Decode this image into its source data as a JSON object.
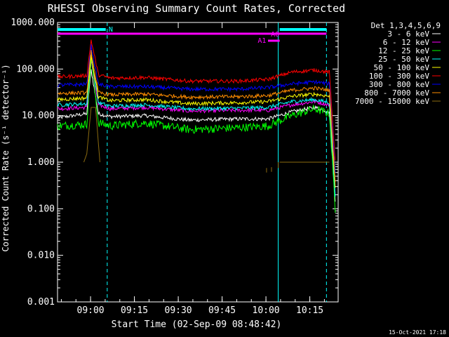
{
  "chart_data": {
    "type": "line",
    "title": "RHESSI Observing Summary Count Rates, Corrected",
    "xlabel": "Start Time (02-Sep-09 08:48:42)",
    "ylabel": "Corrected Count Rate (s⁻¹ detector⁻¹)",
    "y_scale": "log",
    "ylim": [
      0.001,
      1000
    ],
    "xlim_minutes": [
      0,
      96
    ],
    "x_ticks": [
      {
        "label": "09:00",
        "minutes": 11.3
      },
      {
        "label": "09:15",
        "minutes": 26.3
      },
      {
        "label": "09:30",
        "minutes": 41.3
      },
      {
        "label": "09:45",
        "minutes": 56.3
      },
      {
        "label": "10:00",
        "minutes": 71.3
      },
      {
        "label": "10:15",
        "minutes": 86.3
      }
    ],
    "y_ticks": [
      "0.001",
      "0.010",
      "0.100",
      "1.000",
      "10.000",
      "100.000",
      "1000.000"
    ],
    "legend_title": "Det 1,3,4,5,6,9",
    "legend_position": "right",
    "series": [
      {
        "name": "3 - 6 keV",
        "color": "#ffffff",
        "knots": [
          [
            0,
            9
          ],
          [
            10,
            11
          ],
          [
            11.5,
            95
          ],
          [
            14,
            11
          ],
          [
            18,
            9.5
          ],
          [
            30,
            10
          ],
          [
            45,
            8
          ],
          [
            62,
            8.5
          ],
          [
            72,
            8.5
          ],
          [
            80,
            12
          ],
          [
            88,
            15
          ],
          [
            93,
            12
          ],
          [
            95,
            0.15
          ]
        ]
      },
      {
        "name": "6 - 12 keV",
        "color": "#ff00ff",
        "knots": [
          [
            0,
            14
          ],
          [
            10,
            15
          ],
          [
            11.5,
            150
          ],
          [
            14,
            17
          ],
          [
            18,
            14
          ],
          [
            30,
            15
          ],
          [
            45,
            12.5
          ],
          [
            62,
            13
          ],
          [
            72,
            13
          ],
          [
            80,
            17
          ],
          [
            88,
            20
          ],
          [
            93,
            17
          ],
          [
            95,
            0.2
          ]
        ]
      },
      {
        "name": "12 - 25 keV",
        "color": "#00ff00",
        "knots": [
          [
            0,
            6
          ],
          [
            10,
            6.5
          ],
          [
            11.5,
            180
          ],
          [
            14,
            7
          ],
          [
            18,
            6
          ],
          [
            30,
            7
          ],
          [
            45,
            5
          ],
          [
            62,
            5.5
          ],
          [
            72,
            6
          ],
          [
            80,
            10
          ],
          [
            88,
            14
          ],
          [
            93,
            11
          ],
          [
            95,
            0.1
          ]
        ]
      },
      {
        "name": "25 - 50 keV",
        "color": "#00ffff",
        "knots": [
          [
            0,
            17
          ],
          [
            10,
            18
          ],
          [
            11.5,
            200
          ],
          [
            14,
            19
          ],
          [
            18,
            16
          ],
          [
            30,
            17
          ],
          [
            45,
            14
          ],
          [
            62,
            14.5
          ],
          [
            72,
            15
          ],
          [
            80,
            20
          ],
          [
            88,
            22
          ],
          [
            93,
            19
          ],
          [
            95,
            0.2
          ]
        ]
      },
      {
        "name": "50 - 100 keV",
        "color": "#ffff00",
        "knots": [
          [
            0,
            22
          ],
          [
            10,
            24
          ],
          [
            11.5,
            190
          ],
          [
            14,
            25
          ],
          [
            18,
            21
          ],
          [
            30,
            22
          ],
          [
            45,
            18
          ],
          [
            62,
            19
          ],
          [
            72,
            20
          ],
          [
            80,
            26
          ],
          [
            88,
            29
          ],
          [
            93,
            26
          ],
          [
            95,
            0.3
          ]
        ]
      },
      {
        "name": "100 - 300 keV",
        "color": "#ff0000",
        "knots": [
          [
            0,
            68
          ],
          [
            10,
            72
          ],
          [
            11.5,
            420
          ],
          [
            14,
            75
          ],
          [
            18,
            64
          ],
          [
            30,
            66
          ],
          [
            45,
            55
          ],
          [
            62,
            55
          ],
          [
            72,
            60
          ],
          [
            80,
            86
          ],
          [
            88,
            95
          ],
          [
            93,
            85
          ],
          [
            95,
            1
          ]
        ]
      },
      {
        "name": "300 - 800 keV",
        "color": "#0000ff",
        "knots": [
          [
            0,
            45
          ],
          [
            10,
            47
          ],
          [
            11.5,
            310
          ],
          [
            14,
            47
          ],
          [
            18,
            42
          ],
          [
            30,
            42
          ],
          [
            45,
            37
          ],
          [
            62,
            37
          ],
          [
            72,
            40
          ],
          [
            80,
            48
          ],
          [
            88,
            53
          ],
          [
            93,
            48
          ],
          [
            95,
            0.6
          ]
        ]
      },
      {
        "name": "800 - 7000 keV",
        "color": "#ff8c00",
        "knots": [
          [
            0,
            30
          ],
          [
            10,
            31
          ],
          [
            11.5,
            240
          ],
          [
            14,
            31
          ],
          [
            18,
            28
          ],
          [
            30,
            29
          ],
          [
            45,
            25
          ],
          [
            62,
            25.5
          ],
          [
            72,
            27
          ],
          [
            80,
            35
          ],
          [
            88,
            39
          ],
          [
            93,
            35
          ],
          [
            95,
            0.4
          ]
        ]
      },
      {
        "name": "7000 - 15000 keV",
        "color": "#8b6b10",
        "knots": [
          [
            9,
            1
          ],
          [
            10,
            1.5
          ],
          [
            11.5,
            15
          ],
          [
            13,
            15
          ],
          [
            14.5,
            1
          ]
        ]
      }
    ],
    "flag_bars": [
      {
        "label": "N",
        "color": "#00ffff",
        "segments": [
          [
            0,
            16.5
          ],
          [
            76,
            92
          ]
        ]
      },
      {
        "label": "A0",
        "color": "#ff00ff",
        "segments": [
          [
            0,
            92
          ]
        ]
      },
      {
        "label": "A1",
        "color": "#ff00ff",
        "segments": [
          [
            72,
            76
          ]
        ]
      }
    ],
    "vertical_markers_minutes": [
      17,
      75.5,
      92
    ],
    "timestamp": "15-Oct-2021 17:18"
  }
}
